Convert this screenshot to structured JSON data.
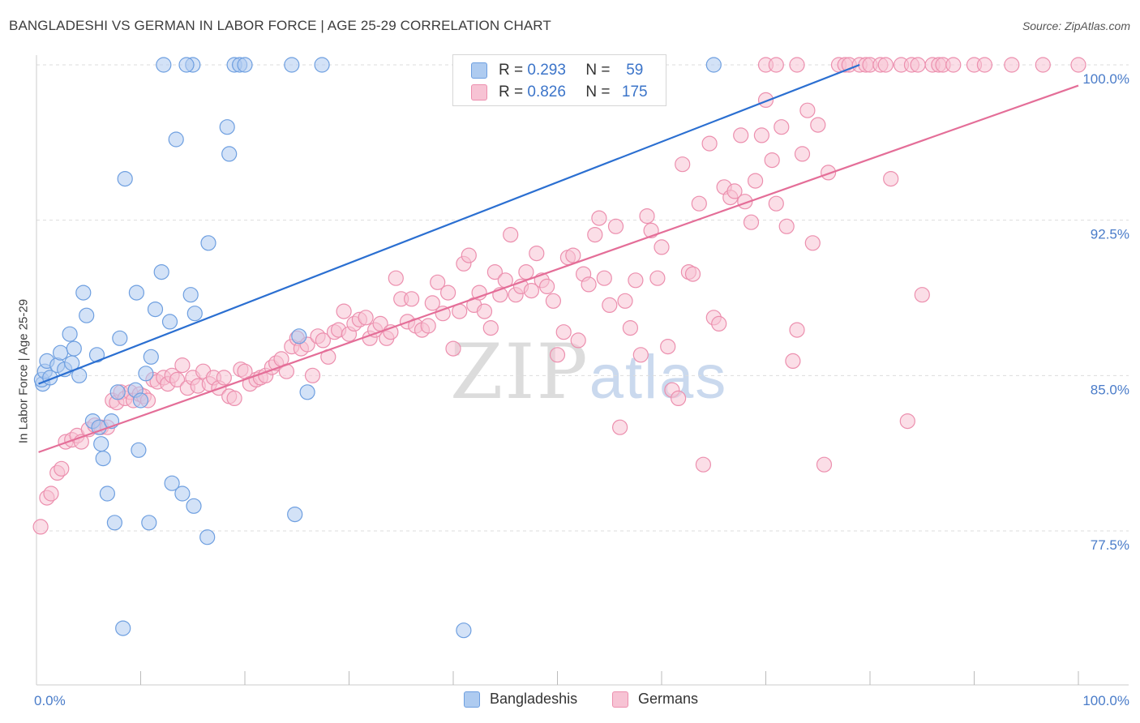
{
  "header": {
    "title": "BANGLADESHI VS GERMAN IN LABOR FORCE | AGE 25-29 CORRELATION CHART",
    "source": "Source: ZipAtlas.com"
  },
  "watermark": {
    "zip": "ZIP",
    "atlas": "atlas"
  },
  "legend": {
    "rows": [
      {
        "r_label": "R =",
        "r_value": "0.293",
        "n_label": "N =",
        "n_value": "59"
      },
      {
        "r_label": "R =",
        "r_value": "0.826",
        "n_label": "N =",
        "n_value": "175"
      }
    ]
  },
  "bottom_legend": {
    "item1": "Bangladeshis",
    "item2": "Germans"
  },
  "colors": {
    "blue_fill": "#aecbf0",
    "blue_stroke": "#6e9fe0",
    "blue_line": "#2b6fd1",
    "pink_fill": "#f7c3d4",
    "pink_stroke": "#ec8fae",
    "pink_line": "#e46e98",
    "axis_text": "#4a7cc9",
    "grid": "#dddddd"
  },
  "chart_data": {
    "type": "scatter",
    "title": "BANGLADESHI VS GERMAN IN LABOR FORCE | AGE 25-29 CORRELATION CHART",
    "xlabel": "",
    "ylabel": "In Labor Force | Age 25-29",
    "xlim": [
      0,
      100
    ],
    "ylim": [
      70,
      101.5
    ],
    "x_tick_labels": [
      "0.0%",
      "100.0%"
    ],
    "y_ticks": [
      77.5,
      85.0,
      92.5,
      100.0
    ],
    "y_tick_labels": [
      "77.5%",
      "85.0%",
      "92.5%",
      "100.0%"
    ],
    "grid": true,
    "legend_position": "top-center",
    "series": [
      {
        "name": "Bangladeshis",
        "color": "#aecbf0",
        "trend": {
          "x": [
            0.2,
            79.0
          ],
          "y": [
            84.6,
            100.0
          ]
        },
        "points": [
          [
            0.6,
            84.6
          ],
          [
            0.5,
            84.8
          ],
          [
            0.8,
            85.2
          ],
          [
            1.0,
            85.7
          ],
          [
            1.3,
            84.9
          ],
          [
            2.0,
            85.5
          ],
          [
            2.3,
            86.1
          ],
          [
            2.7,
            85.3
          ],
          [
            3.2,
            87.0
          ],
          [
            3.4,
            85.6
          ],
          [
            3.6,
            86.3
          ],
          [
            4.1,
            85.0
          ],
          [
            4.5,
            89.0
          ],
          [
            4.8,
            87.9
          ],
          [
            5.4,
            82.8
          ],
          [
            5.8,
            86.0
          ],
          [
            6.0,
            82.5
          ],
          [
            6.2,
            81.7
          ],
          [
            6.4,
            81.0
          ],
          [
            6.8,
            79.3
          ],
          [
            7.2,
            82.8
          ],
          [
            7.5,
            77.9
          ],
          [
            7.8,
            84.2
          ],
          [
            8.0,
            86.8
          ],
          [
            8.3,
            72.8
          ],
          [
            8.5,
            94.5
          ],
          [
            9.5,
            84.3
          ],
          [
            9.6,
            89.0
          ],
          [
            9.8,
            81.4
          ],
          [
            10.0,
            83.8
          ],
          [
            10.5,
            85.1
          ],
          [
            10.8,
            77.9
          ],
          [
            11.0,
            85.9
          ],
          [
            11.4,
            88.2
          ],
          [
            12.0,
            90.0
          ],
          [
            12.8,
            87.6
          ],
          [
            13.0,
            79.8
          ],
          [
            13.4,
            96.4
          ],
          [
            14.0,
            79.3
          ],
          [
            14.8,
            88.9
          ],
          [
            15.1,
            78.7
          ],
          [
            15.2,
            88.0
          ],
          [
            16.4,
            77.2
          ],
          [
            16.5,
            91.4
          ],
          [
            18.3,
            97.0
          ],
          [
            18.5,
            95.7
          ],
          [
            19.0,
            100.0
          ],
          [
            19.5,
            100.0
          ],
          [
            15.0,
            100.0
          ],
          [
            12.2,
            100.0
          ],
          [
            14.4,
            100.0
          ],
          [
            20.0,
            100.0
          ],
          [
            24.5,
            100.0
          ],
          [
            27.4,
            100.0
          ],
          [
            24.8,
            78.3
          ],
          [
            25.2,
            86.9
          ],
          [
            26.0,
            84.2
          ],
          [
            41.0,
            72.7
          ],
          [
            65.0,
            100.0
          ]
        ]
      },
      {
        "name": "Germans",
        "color": "#f7c3d4",
        "trend": {
          "x": [
            0.2,
            100.0
          ],
          "y": [
            81.3,
            99.0
          ]
        },
        "points": [
          [
            0.4,
            77.7
          ],
          [
            1.0,
            79.1
          ],
          [
            1.4,
            79.3
          ],
          [
            2.0,
            80.3
          ],
          [
            2.4,
            80.5
          ],
          [
            2.8,
            81.8
          ],
          [
            3.4,
            81.9
          ],
          [
            3.9,
            82.1
          ],
          [
            4.3,
            81.8
          ],
          [
            5.0,
            82.4
          ],
          [
            5.6,
            82.6
          ],
          [
            6.2,
            82.5
          ],
          [
            6.8,
            82.5
          ],
          [
            7.3,
            83.8
          ],
          [
            7.7,
            83.7
          ],
          [
            8.1,
            84.2
          ],
          [
            8.5,
            83.9
          ],
          [
            9.0,
            84.2
          ],
          [
            9.3,
            83.8
          ],
          [
            9.9,
            84.1
          ],
          [
            10.3,
            84.0
          ],
          [
            10.7,
            83.8
          ],
          [
            11.2,
            84.8
          ],
          [
            11.6,
            84.7
          ],
          [
            12.2,
            84.9
          ],
          [
            12.6,
            84.6
          ],
          [
            13.0,
            85.0
          ],
          [
            13.5,
            84.8
          ],
          [
            14.0,
            85.5
          ],
          [
            14.5,
            84.4
          ],
          [
            15.0,
            84.9
          ],
          [
            15.5,
            84.5
          ],
          [
            16.0,
            85.2
          ],
          [
            16.6,
            84.6
          ],
          [
            17.0,
            84.9
          ],
          [
            17.5,
            84.4
          ],
          [
            18.0,
            84.9
          ],
          [
            18.5,
            84.0
          ],
          [
            19.0,
            83.9
          ],
          [
            19.6,
            85.3
          ],
          [
            20.0,
            85.2
          ],
          [
            20.5,
            84.6
          ],
          [
            21.1,
            84.8
          ],
          [
            21.5,
            84.9
          ],
          [
            22.0,
            85.0
          ],
          [
            22.6,
            85.4
          ],
          [
            23.0,
            85.6
          ],
          [
            23.5,
            85.8
          ],
          [
            24.0,
            85.2
          ],
          [
            24.5,
            86.4
          ],
          [
            25.0,
            86.8
          ],
          [
            25.4,
            86.3
          ],
          [
            26.0,
            86.5
          ],
          [
            26.5,
            85.0
          ],
          [
            27.0,
            86.9
          ],
          [
            27.5,
            86.7
          ],
          [
            28.0,
            85.9
          ],
          [
            28.6,
            87.1
          ],
          [
            29.0,
            87.2
          ],
          [
            29.5,
            88.1
          ],
          [
            30.0,
            87.0
          ],
          [
            30.5,
            87.5
          ],
          [
            31.0,
            87.7
          ],
          [
            31.6,
            87.8
          ],
          [
            32.0,
            86.8
          ],
          [
            32.5,
            87.2
          ],
          [
            33.0,
            87.5
          ],
          [
            33.6,
            86.8
          ],
          [
            34.0,
            87.1
          ],
          [
            34.5,
            89.7
          ],
          [
            35.0,
            88.7
          ],
          [
            35.6,
            87.6
          ],
          [
            36.0,
            88.7
          ],
          [
            36.4,
            87.4
          ],
          [
            37.0,
            87.2
          ],
          [
            37.6,
            87.4
          ],
          [
            38.0,
            88.5
          ],
          [
            38.5,
            89.5
          ],
          [
            39.0,
            88.0
          ],
          [
            39.5,
            89.0
          ],
          [
            40.0,
            86.3
          ],
          [
            40.6,
            88.1
          ],
          [
            41.0,
            90.4
          ],
          [
            41.5,
            90.8
          ],
          [
            42.0,
            88.4
          ],
          [
            42.5,
            89.0
          ],
          [
            43.0,
            88.1
          ],
          [
            43.6,
            87.3
          ],
          [
            44.0,
            90.0
          ],
          [
            44.5,
            88.9
          ],
          [
            45.0,
            89.6
          ],
          [
            45.5,
            91.8
          ],
          [
            46.0,
            88.9
          ],
          [
            46.5,
            89.3
          ],
          [
            47.0,
            90.0
          ],
          [
            47.5,
            89.1
          ],
          [
            48.0,
            90.9
          ],
          [
            48.5,
            89.6
          ],
          [
            49.0,
            89.3
          ],
          [
            49.6,
            88.6
          ],
          [
            50.0,
            86.0
          ],
          [
            50.6,
            87.1
          ],
          [
            51.0,
            90.7
          ],
          [
            51.5,
            90.8
          ],
          [
            52.0,
            86.7
          ],
          [
            52.5,
            89.9
          ],
          [
            53.0,
            89.4
          ],
          [
            53.6,
            91.8
          ],
          [
            54.0,
            92.6
          ],
          [
            54.5,
            89.7
          ],
          [
            55.0,
            88.4
          ],
          [
            55.6,
            92.2
          ],
          [
            56.0,
            82.5
          ],
          [
            56.5,
            88.6
          ],
          [
            57.0,
            87.3
          ],
          [
            57.5,
            89.6
          ],
          [
            58.0,
            86.0
          ],
          [
            58.6,
            92.7
          ],
          [
            59.0,
            92.0
          ],
          [
            59.6,
            89.7
          ],
          [
            60.0,
            91.2
          ],
          [
            60.6,
            86.4
          ],
          [
            61.0,
            84.3
          ],
          [
            61.6,
            83.9
          ],
          [
            62.0,
            95.2
          ],
          [
            62.6,
            90.0
          ],
          [
            63.0,
            89.9
          ],
          [
            63.6,
            93.3
          ],
          [
            64.0,
            80.7
          ],
          [
            64.6,
            96.2
          ],
          [
            65.0,
            87.8
          ],
          [
            65.5,
            87.5
          ],
          [
            66.0,
            94.1
          ],
          [
            66.6,
            93.6
          ],
          [
            67.0,
            93.9
          ],
          [
            67.6,
            96.6
          ],
          [
            68.0,
            93.4
          ],
          [
            68.6,
            92.4
          ],
          [
            69.0,
            94.4
          ],
          [
            69.6,
            96.6
          ],
          [
            70.0,
            98.3
          ],
          [
            70.6,
            95.4
          ],
          [
            71.0,
            93.3
          ],
          [
            71.5,
            97.0
          ],
          [
            72.0,
            92.2
          ],
          [
            72.6,
            85.7
          ],
          [
            73.0,
            87.2
          ],
          [
            73.5,
            95.7
          ],
          [
            74.0,
            97.8
          ],
          [
            74.5,
            91.4
          ],
          [
            75.0,
            97.1
          ],
          [
            75.6,
            80.7
          ],
          [
            76.0,
            94.8
          ],
          [
            77.0,
            100.0
          ],
          [
            77.6,
            100.0
          ],
          [
            78.0,
            100.0
          ],
          [
            79.0,
            100.0
          ],
          [
            79.6,
            100.0
          ],
          [
            80.0,
            100.0
          ],
          [
            81.0,
            100.0
          ],
          [
            81.5,
            100.0
          ],
          [
            82.0,
            94.5
          ],
          [
            83.0,
            100.0
          ],
          [
            83.6,
            82.8
          ],
          [
            84.0,
            100.0
          ],
          [
            84.6,
            100.0
          ],
          [
            85.0,
            88.9
          ],
          [
            86.0,
            100.0
          ],
          [
            86.6,
            100.0
          ],
          [
            87.0,
            100.0
          ],
          [
            88.0,
            100.0
          ],
          [
            90.0,
            100.0
          ],
          [
            91.0,
            100.0
          ],
          [
            93.6,
            100.0
          ],
          [
            96.6,
            100.0
          ],
          [
            100.0,
            100.0
          ],
          [
            70.0,
            100.0
          ],
          [
            71.0,
            100.0
          ],
          [
            73.0,
            100.0
          ]
        ]
      }
    ]
  }
}
